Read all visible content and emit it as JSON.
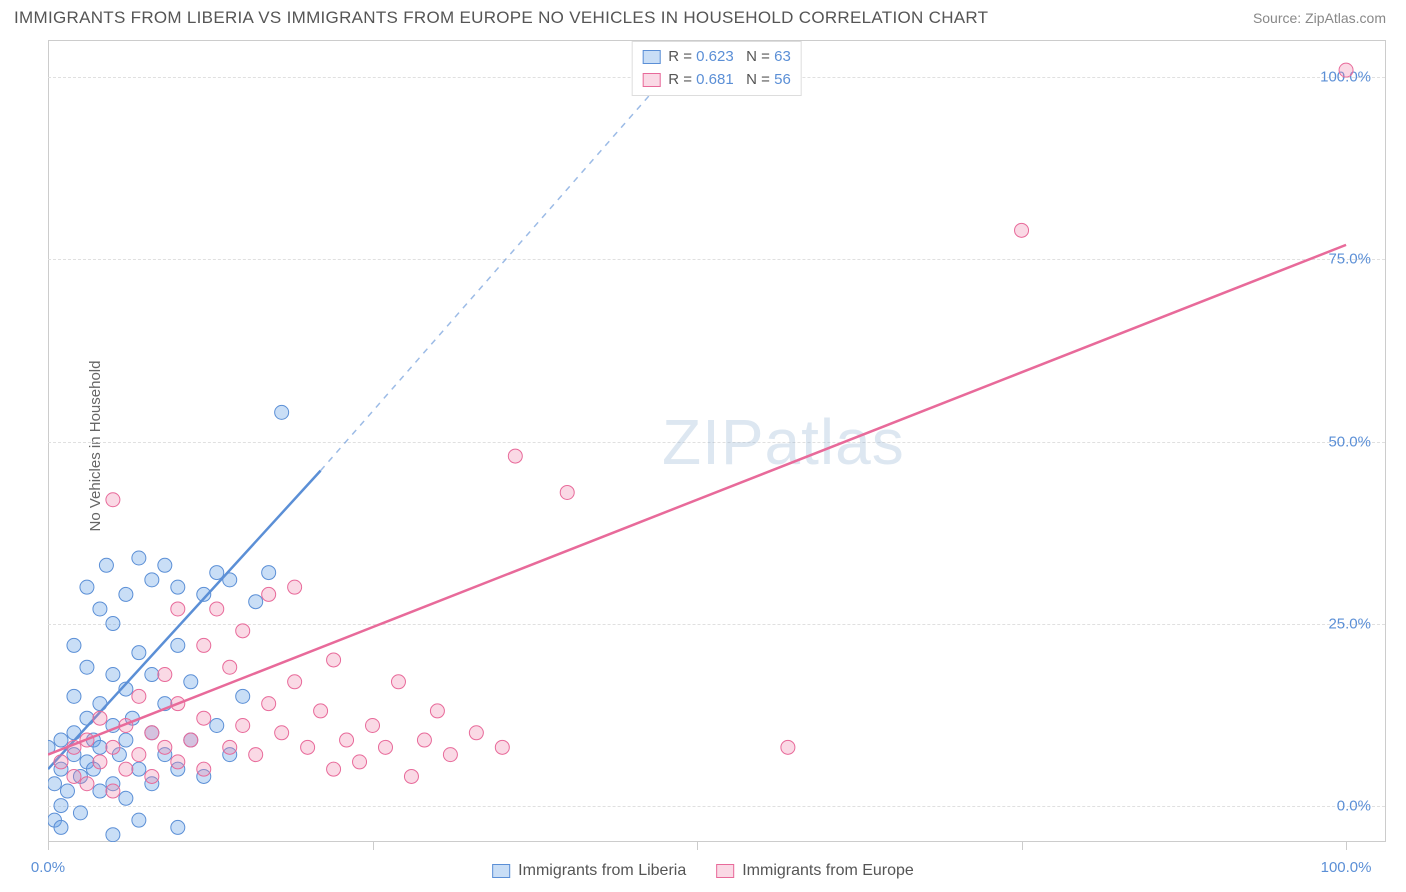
{
  "title": "IMMIGRANTS FROM LIBERIA VS IMMIGRANTS FROM EUROPE NO VEHICLES IN HOUSEHOLD CORRELATION CHART",
  "source": "Source: ZipAtlas.com",
  "ylabel": "No Vehicles in Household",
  "watermark_a": "ZIP",
  "watermark_b": "atlas",
  "chart": {
    "type": "scatter",
    "xlim": [
      0,
      103
    ],
    "ylim": [
      -5,
      105
    ],
    "xtick_positions": [
      0,
      25,
      50,
      75,
      100
    ],
    "xtick_labels": {
      "0": "0.0%",
      "100": "100.0%"
    },
    "ytick_positions": [
      0,
      25,
      50,
      75,
      100
    ],
    "ytick_labels": {
      "0": "0.0%",
      "25": "25.0%",
      "50": "50.0%",
      "75": "75.0%",
      "100": "100.0%"
    },
    "grid_color": "#e0e0e0",
    "background_color": "#ffffff",
    "axis_color": "#cccccc",
    "series": [
      {
        "name": "Immigrants from Liberia",
        "label": "Immigrants from Liberia",
        "color_fill": "rgba(100,160,230,0.35)",
        "color_stroke": "#5b8fd6",
        "marker_radius": 7,
        "R": 0.623,
        "N": 63,
        "trend_solid": {
          "x1": 0,
          "y1": 5,
          "x2": 21,
          "y2": 46
        },
        "trend_dashed": {
          "x1": 21,
          "y1": 46,
          "x2": 50,
          "y2": 105
        },
        "points": [
          [
            0,
            8
          ],
          [
            0.5,
            3
          ],
          [
            0.5,
            -2
          ],
          [
            1,
            -3
          ],
          [
            1,
            0
          ],
          [
            1,
            5
          ],
          [
            1,
            9
          ],
          [
            1.5,
            2
          ],
          [
            2,
            7
          ],
          [
            2,
            10
          ],
          [
            2,
            15
          ],
          [
            2,
            22
          ],
          [
            2.5,
            4
          ],
          [
            2.5,
            -1
          ],
          [
            3,
            6
          ],
          [
            3,
            12
          ],
          [
            3,
            19
          ],
          [
            3,
            30
          ],
          [
            3.5,
            9
          ],
          [
            3.5,
            5
          ],
          [
            4,
            2
          ],
          [
            4,
            8
          ],
          [
            4,
            14
          ],
          [
            4,
            27
          ],
          [
            4.5,
            33
          ],
          [
            5,
            -4
          ],
          [
            5,
            3
          ],
          [
            5,
            11
          ],
          [
            5,
            18
          ],
          [
            5,
            25
          ],
          [
            5.5,
            7
          ],
          [
            6,
            1
          ],
          [
            6,
            9
          ],
          [
            6,
            16
          ],
          [
            6,
            29
          ],
          [
            6.5,
            12
          ],
          [
            7,
            -2
          ],
          [
            7,
            5
          ],
          [
            7,
            21
          ],
          [
            7,
            34
          ],
          [
            8,
            3
          ],
          [
            8,
            10
          ],
          [
            8,
            18
          ],
          [
            8,
            31
          ],
          [
            9,
            7
          ],
          [
            9,
            14
          ],
          [
            9,
            33
          ],
          [
            10,
            -3
          ],
          [
            10,
            5
          ],
          [
            10,
            22
          ],
          [
            10,
            30
          ],
          [
            11,
            9
          ],
          [
            11,
            17
          ],
          [
            12,
            4
          ],
          [
            12,
            29
          ],
          [
            13,
            11
          ],
          [
            13,
            32
          ],
          [
            14,
            7
          ],
          [
            14,
            31
          ],
          [
            15,
            15
          ],
          [
            16,
            28
          ],
          [
            17,
            32
          ],
          [
            18,
            54
          ]
        ]
      },
      {
        "name": "Immigrants from Europe",
        "label": "Immigrants from Europe",
        "color_fill": "rgba(240,130,170,0.3)",
        "color_stroke": "#e86a9a",
        "marker_radius": 7,
        "R": 0.681,
        "N": 56,
        "trend_solid": {
          "x1": 0,
          "y1": 7,
          "x2": 100,
          "y2": 77
        },
        "points": [
          [
            1,
            6
          ],
          [
            2,
            4
          ],
          [
            2,
            8
          ],
          [
            3,
            3
          ],
          [
            3,
            9
          ],
          [
            4,
            6
          ],
          [
            4,
            12
          ],
          [
            5,
            2
          ],
          [
            5,
            8
          ],
          [
            5,
            42
          ],
          [
            6,
            5
          ],
          [
            6,
            11
          ],
          [
            7,
            7
          ],
          [
            7,
            15
          ],
          [
            8,
            4
          ],
          [
            8,
            10
          ],
          [
            9,
            8
          ],
          [
            9,
            18
          ],
          [
            10,
            6
          ],
          [
            10,
            14
          ],
          [
            10,
            27
          ],
          [
            11,
            9
          ],
          [
            12,
            5
          ],
          [
            12,
            12
          ],
          [
            12,
            22
          ],
          [
            13,
            27
          ],
          [
            14,
            8
          ],
          [
            14,
            19
          ],
          [
            15,
            11
          ],
          [
            15,
            24
          ],
          [
            16,
            7
          ],
          [
            17,
            14
          ],
          [
            17,
            29
          ],
          [
            18,
            10
          ],
          [
            19,
            17
          ],
          [
            19,
            30
          ],
          [
            20,
            8
          ],
          [
            21,
            13
          ],
          [
            22,
            5
          ],
          [
            22,
            20
          ],
          [
            23,
            9
          ],
          [
            24,
            6
          ],
          [
            25,
            11
          ],
          [
            26,
            8
          ],
          [
            27,
            17
          ],
          [
            28,
            4
          ],
          [
            29,
            9
          ],
          [
            30,
            13
          ],
          [
            31,
            7
          ],
          [
            33,
            10
          ],
          [
            35,
            8
          ],
          [
            36,
            48
          ],
          [
            40,
            43
          ],
          [
            57,
            8
          ],
          [
            75,
            79
          ],
          [
            100,
            101
          ]
        ]
      }
    ]
  },
  "legend_top": [
    {
      "swatch": "blue",
      "R": "0.623",
      "N": "63"
    },
    {
      "swatch": "pink",
      "R": "0.681",
      "N": "56"
    }
  ],
  "legend_bottom": [
    {
      "swatch": "blue",
      "label": "Immigrants from Liberia"
    },
    {
      "swatch": "pink",
      "label": "Immigrants from Europe"
    }
  ]
}
